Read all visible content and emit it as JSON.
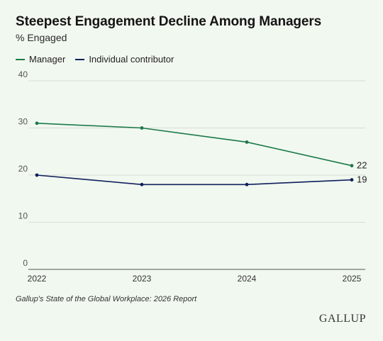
{
  "chart_data": {
    "type": "line",
    "title": "Steepest Engagement Decline Among Managers",
    "subtitle": "% Engaged",
    "x": [
      "2022",
      "2023",
      "2024",
      "2025"
    ],
    "ylim": [
      0,
      40
    ],
    "yticks": [
      0,
      10,
      20,
      30,
      40
    ],
    "grid": true,
    "legend_position": "top-left",
    "series": [
      {
        "name": "Manager",
        "values": [
          31,
          30,
          27,
          22
        ],
        "color": "#1c7a4a",
        "end_label": "22"
      },
      {
        "name": "Individual contributor",
        "values": [
          20,
          18,
          18,
          19
        ],
        "color": "#0f1f5c",
        "end_label": "19"
      }
    ]
  },
  "source": "Gallup's State of the Global Workplace: 2026 Report",
  "brand": "GALLUP"
}
